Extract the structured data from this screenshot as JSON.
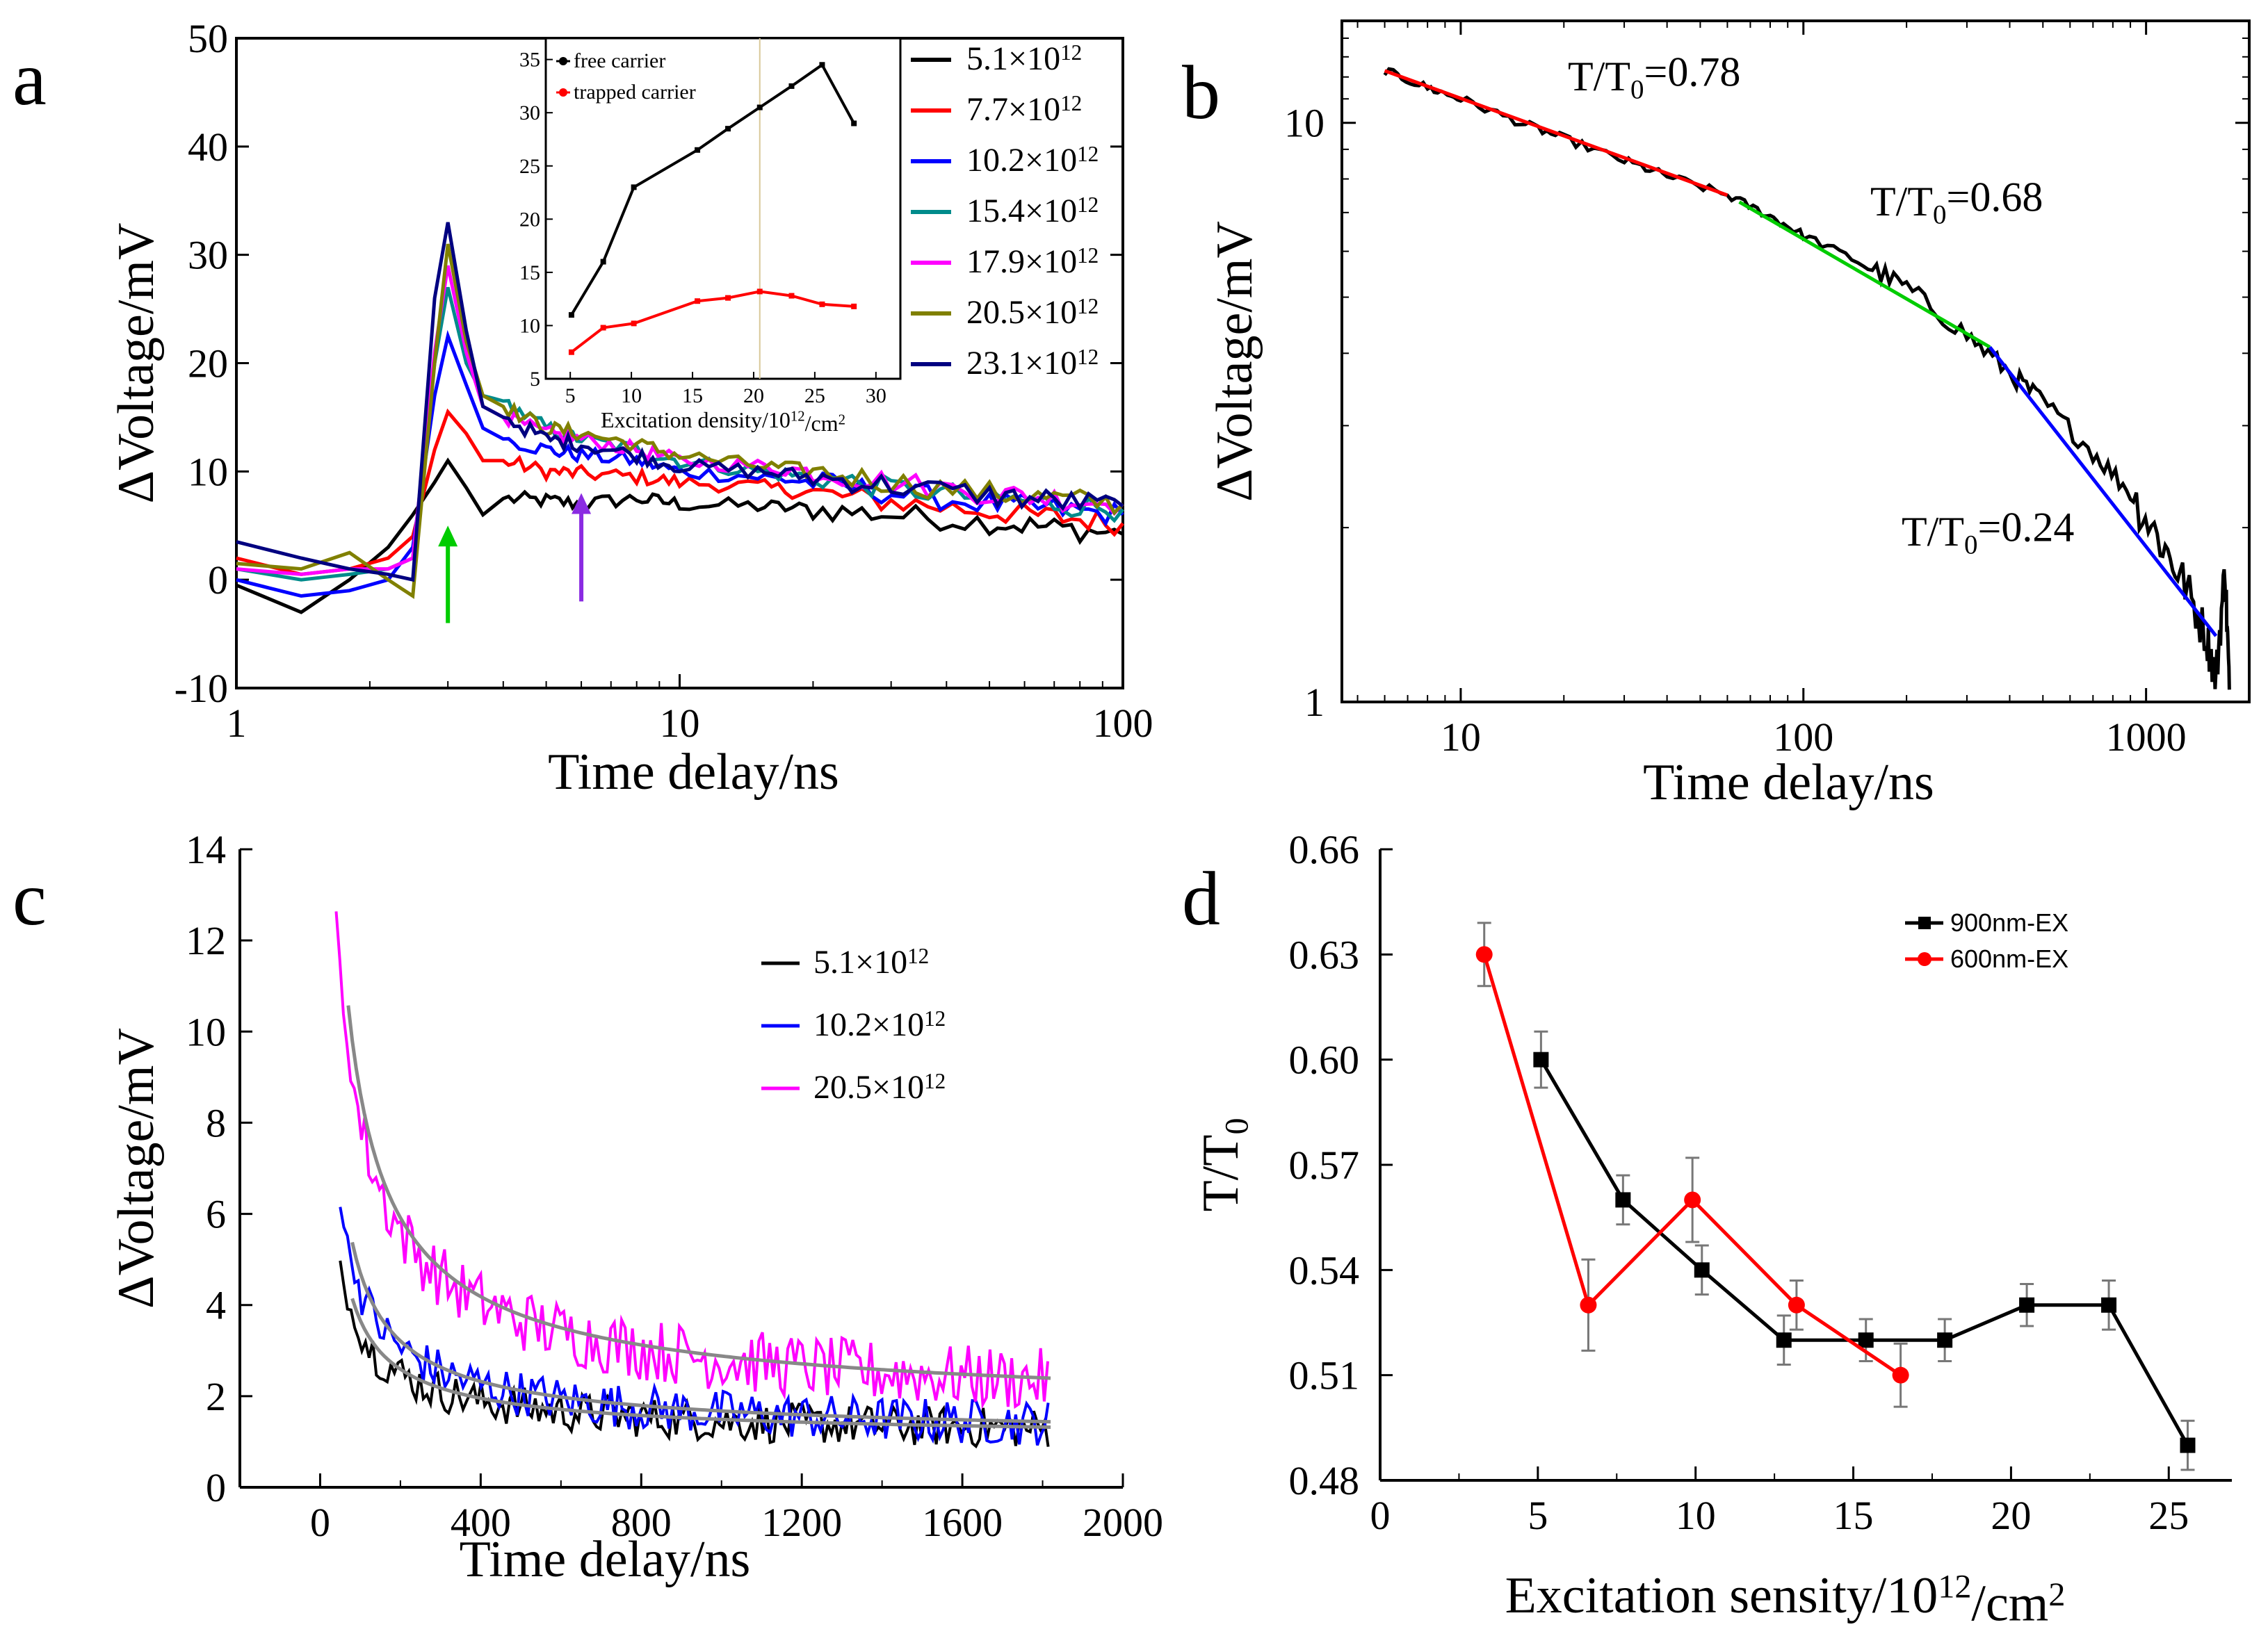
{
  "chart_data": [
    {
      "panel": "a",
      "type": "line",
      "title": "",
      "xlabel": "Time delay/ns",
      "ylabel": "ΔVoltage/mV",
      "xscale": "log",
      "xlim": [
        1,
        100
      ],
      "ylim": [
        -10,
        50
      ],
      "xticks": [
        "1",
        "10",
        "100"
      ],
      "yticks": [
        "-10",
        "0",
        "10",
        "20",
        "30",
        "40",
        "50"
      ],
      "legend_placement": "right",
      "series": [
        {
          "name": "5.1×10",
          "sup": "12",
          "color": "#000000",
          "t": [
            1,
            1.4,
            1.8,
            2.2,
            2.5,
            2.8,
            3.0,
            3.3,
            3.6,
            4,
            5,
            6,
            8,
            10,
            15,
            20,
            30,
            50,
            70,
            100
          ],
          "v": [
            -0.5,
            -3,
            0,
            3,
            6,
            9,
            11,
            8.5,
            6,
            7.5,
            7.3,
            7,
            7.5,
            7,
            6.8,
            6.5,
            6,
            5.3,
            4.8,
            4.2
          ]
        },
        {
          "name": "7.7×10",
          "sup": "12",
          "color": "#ff0000",
          "t": [
            1,
            1.4,
            1.8,
            2.2,
            2.5,
            2.8,
            3.0,
            3.3,
            3.6,
            4,
            5,
            6,
            8,
            10,
            15,
            20,
            30,
            50,
            70,
            100
          ],
          "v": [
            2,
            0.5,
            1,
            2,
            4,
            12,
            15.5,
            13.5,
            11,
            11,
            10,
            9.8,
            9.5,
            9,
            8.6,
            8,
            7.2,
            6.3,
            5.8,
            5.2
          ]
        },
        {
          "name": "10.2×10",
          "sup": "12",
          "color": "#0000ff",
          "t": [
            1,
            1.4,
            1.8,
            2.2,
            2.5,
            2.8,
            3.0,
            3.3,
            3.6,
            4,
            5,
            6,
            8,
            10,
            15,
            20,
            30,
            50,
            70,
            100
          ],
          "v": [
            0,
            -1.5,
            -1,
            0,
            3,
            17,
            22.5,
            18,
            14,
            13,
            12,
            11.5,
            11,
            10,
            9.5,
            9,
            8,
            7,
            6.5,
            6
          ]
        },
        {
          "name": "15.4×10",
          "sup": "12",
          "color": "#008b8b",
          "t": [
            1,
            1.4,
            1.8,
            2.2,
            2.5,
            2.8,
            3.0,
            3.3,
            3.6,
            4,
            5,
            6,
            8,
            10,
            15,
            20,
            30,
            50,
            70,
            100
          ],
          "v": [
            1,
            0,
            0.5,
            1,
            2,
            20,
            27,
            20,
            17,
            16.5,
            14,
            13,
            12,
            11,
            10,
            9.5,
            8.5,
            7.5,
            7,
            6.5
          ]
        },
        {
          "name": "17.9×10",
          "sup": "12",
          "color": "#ff00ff",
          "t": [
            1,
            1.4,
            1.8,
            2.2,
            2.5,
            2.8,
            3.0,
            3.3,
            3.6,
            4,
            5,
            6,
            8,
            10,
            15,
            20,
            30,
            50,
            70,
            100
          ],
          "v": [
            1,
            0.5,
            1,
            1,
            2,
            21,
            29,
            21,
            16,
            15,
            13.5,
            13,
            12,
            11,
            10.5,
            10,
            9,
            8,
            7.5,
            7
          ]
        },
        {
          "name": "20.5×10",
          "sup": "12",
          "color": "#808000",
          "t": [
            1,
            1.4,
            1.8,
            2.2,
            2.5,
            2.8,
            3.0,
            3.3,
            3.6,
            4,
            5,
            6,
            8,
            10,
            15,
            20,
            30,
            50,
            70,
            100
          ],
          "v": [
            1.5,
            1,
            2.5,
            0,
            -1.5,
            20,
            31,
            22,
            17,
            16,
            14,
            13.5,
            12.5,
            11.5,
            10.5,
            10,
            9,
            8,
            7.5,
            7
          ]
        },
        {
          "name": "23.1×10",
          "sup": "12",
          "color": "#000080",
          "t": [
            1,
            1.4,
            1.8,
            2.2,
            2.5,
            2.8,
            3.0,
            3.3,
            3.6,
            4,
            5,
            6,
            8,
            10,
            15,
            20,
            30,
            50,
            70,
            100
          ],
          "v": [
            3.5,
            2,
            1,
            0.5,
            0,
            26,
            33,
            23,
            16,
            15,
            13,
            12.5,
            11.5,
            10.5,
            10,
            9.5,
            8.7,
            7.8,
            7.3,
            6.8
          ]
        }
      ],
      "annotations": [
        {
          "type": "arrow-up",
          "color": "#00cc00",
          "x": 3.0,
          "y_from": -4,
          "y_to": 5
        },
        {
          "type": "arrow-up",
          "color": "#8a2be2",
          "x": 6.0,
          "y_from": -2,
          "y_to": 8
        }
      ],
      "inset": {
        "type": "line",
        "xlabel": "Excitation density/10",
        "xlabel_sup": "12",
        "xlabel_tail": "/cm",
        "xlabel_sup2": "2",
        "xlim": [
          3,
          32
        ],
        "ylim": [
          5,
          37
        ],
        "xticks": [
          "5",
          "10",
          "15",
          "20",
          "25",
          "30"
        ],
        "yticks": [
          "5",
          "10",
          "15",
          "20",
          "25",
          "30",
          "35"
        ],
        "vline_x": 20.5,
        "series": [
          {
            "name": "free carrier",
            "color": "#000000",
            "x": [
              5.1,
              7.7,
              10.2,
              15.4,
              17.9,
              20.5,
              23.1,
              25.6,
              28.2
            ],
            "y": [
              11,
              16,
              23,
              26.5,
              28.5,
              30.5,
              32.5,
              34.5,
              29
            ]
          },
          {
            "name": "trapped carrier",
            "color": "#ff0000",
            "x": [
              5.1,
              7.7,
              10.2,
              15.4,
              17.9,
              20.5,
              23.1,
              25.6,
              28.2
            ],
            "y": [
              7.5,
              9.8,
              10.2,
              12.3,
              12.6,
              13.2,
              12.8,
              12,
              11.8
            ]
          }
        ]
      }
    },
    {
      "panel": "b",
      "type": "line",
      "xlabel": "Time delay/ns",
      "ylabel": "ΔVoltage/mV",
      "xscale": "log",
      "yscale": "log",
      "xlim": [
        4.5,
        2000
      ],
      "ylim": [
        1,
        15
      ],
      "xticks": [
        "10",
        "100",
        "1000"
      ],
      "yticks": [
        "1",
        "10"
      ],
      "series": [
        {
          "name": "data",
          "color": "#000000",
          "t": [
            6,
            8,
            10,
            15,
            20,
            30,
            40,
            60,
            80,
            100,
            150,
            200,
            300,
            400,
            500,
            700,
            900,
            1100,
            1300,
            1500,
            1600,
            1700,
            1750
          ],
          "v": [
            12.3,
            11.5,
            11,
            10,
            9.4,
            8.6,
            8.1,
            7.5,
            6.9,
            6.4,
            5.7,
            5.2,
            4.3,
            3.7,
            3.3,
            2.7,
            2.3,
            1.9,
            1.6,
            1.3,
            1.1,
            1.7,
            1.05
          ]
        },
        {
          "name": "fit T/T0=0.78",
          "color": "#ff0000",
          "t": [
            6,
            60
          ],
          "v": [
            12.3,
            7.5
          ]
        },
        {
          "name": "fit T/T0=0.68",
          "color": "#00cc00",
          "t": [
            65,
            350
          ],
          "v": [
            7.3,
            4.1
          ]
        },
        {
          "name": "fit T/T0=0.24",
          "color": "#0000ff",
          "t": [
            350,
            1600
          ],
          "v": [
            4.1,
            1.3
          ]
        }
      ],
      "annotations": [
        {
          "text": "T/T",
          "sub": "0",
          "tail": "=0.78"
        },
        {
          "text": "T/T",
          "sub": "0",
          "tail": "=0.68"
        },
        {
          "text": "T/T",
          "sub": "0",
          "tail": "=0.24"
        }
      ]
    },
    {
      "panel": "c",
      "type": "line",
      "xlabel": "Time delay/ns",
      "ylabel": "ΔVoltage/mV",
      "xlim": [
        -200,
        2000
      ],
      "ylim": [
        0,
        14
      ],
      "xticks": [
        "0",
        "400",
        "800",
        "1200",
        "1600",
        "2000"
      ],
      "yticks": [
        "0",
        "2",
        "4",
        "6",
        "8",
        "10",
        "12",
        "14"
      ],
      "series": [
        {
          "name": "5.1×10",
          "sup": "12",
          "color": "#000000",
          "t0": 50,
          "t1": 1820,
          "amp": 4.8,
          "floor": 1.0,
          "noise": 0.45
        },
        {
          "name": "10.2×10",
          "sup": "12",
          "color": "#0000ff",
          "t0": 50,
          "t1": 1820,
          "amp": 6.3,
          "floor": 1.0,
          "noise": 0.5
        },
        {
          "name": "20.5×10",
          "sup": "12",
          "color": "#ff00ff",
          "t0": 40,
          "t1": 1820,
          "amp": 12.5,
          "floor": 1.5,
          "noise": 0.7
        }
      ],
      "fit_color": "#888888"
    },
    {
      "panel": "d",
      "type": "line",
      "xlabel": "Excitation sensity/10",
      "xlabel_sup": "12",
      "xlabel_tail": "/cm",
      "xlabel_sup2": "2",
      "ylabel": "T/T",
      "ylabel_sub": "0",
      "xlim": [
        0,
        27
      ],
      "ylim": [
        0.48,
        0.66
      ],
      "xticks": [
        "0",
        "5",
        "10",
        "15",
        "20",
        "25"
      ],
      "yticks": [
        "0.48",
        "0.51",
        "0.54",
        "0.57",
        "0.60",
        "0.63",
        "0.66"
      ],
      "series": [
        {
          "name": "900nm-EX",
          "color": "#000000",
          "marker": "square",
          "x": [
            5.1,
            7.7,
            10.2,
            12.8,
            15.4,
            17.9,
            20.5,
            23.1,
            25.6
          ],
          "y": [
            0.6,
            0.56,
            0.54,
            0.52,
            0.52,
            0.52,
            0.53,
            0.53,
            0.49
          ],
          "err": [
            0.008,
            0.007,
            0.007,
            0.007,
            0.006,
            0.006,
            0.006,
            0.007,
            0.007
          ]
        },
        {
          "name": "600nm-EX",
          "color": "#ff0000",
          "marker": "circle",
          "x": [
            3.3,
            6.6,
            9.9,
            13.2,
            16.5
          ],
          "y": [
            0.63,
            0.53,
            0.56,
            0.53,
            0.51
          ],
          "err": [
            0.009,
            0.013,
            0.012,
            0.007,
            0.009
          ]
        }
      ],
      "legend_placement": "top-right"
    }
  ],
  "panel_labels": [
    "a",
    "b",
    "c",
    "d"
  ]
}
